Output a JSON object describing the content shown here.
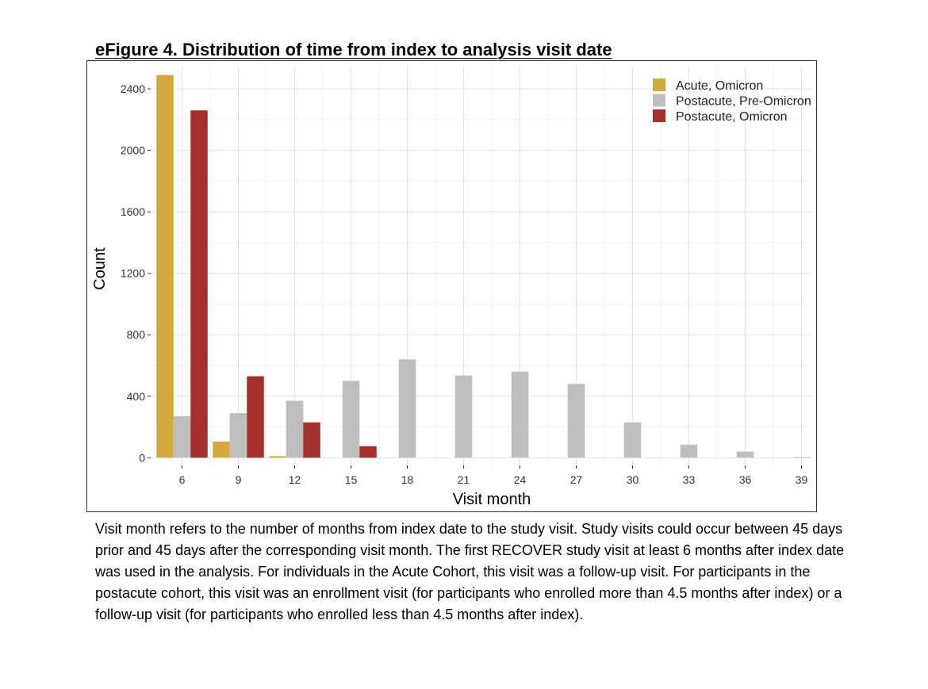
{
  "figure": {
    "title": "eFigure 4. Distribution of time from index to analysis visit date",
    "caption": "Visit month refers to the number of months from index date to the study visit. Study visits could occur between 45 days prior and 45 days after the corresponding visit month. The first RECOVER study visit at least 6 months after index date was used in the analysis. For individuals in the Acute Cohort, this visit was a follow-up visit. For participants in the postacute cohort, this visit was an enrollment visit (for participants who enrolled more than 4.5 months after index) or a follow-up visit (for participants who enrolled less than 4.5 months after index)."
  },
  "chart_data": {
    "type": "bar",
    "title": "eFigure 4. Distribution of time from index to analysis visit date",
    "xlabel": "Visit month",
    "ylabel": "Count",
    "categories": [
      "6",
      "9",
      "12",
      "15",
      "18",
      "21",
      "24",
      "27",
      "30",
      "33",
      "36",
      "39"
    ],
    "x_tick_labels": [
      "6",
      "9",
      "12",
      "15",
      "18",
      "21",
      "24",
      "27",
      "30",
      "33",
      "36",
      "39"
    ],
    "y_ticks": [
      0,
      400,
      800,
      1200,
      1600,
      2000,
      2400
    ],
    "ylim": [
      -50,
      2550
    ],
    "grid": true,
    "legend_position": "top-right",
    "series": [
      {
        "name": "Acute, Omicron",
        "color": "#D4A93C",
        "values": [
          2490,
          105,
          10,
          0,
          0,
          0,
          0,
          0,
          0,
          0,
          0,
          0
        ]
      },
      {
        "name": "Postacute, Pre-Omicron",
        "color": "#BEBEBE",
        "values": [
          270,
          290,
          370,
          500,
          640,
          535,
          560,
          480,
          230,
          85,
          40,
          5
        ]
      },
      {
        "name": "Postacute, Omicron",
        "color": "#A4302C",
        "values": [
          2260,
          530,
          230,
          75,
          0,
          0,
          0,
          0,
          0,
          0,
          0,
          0
        ]
      }
    ]
  }
}
